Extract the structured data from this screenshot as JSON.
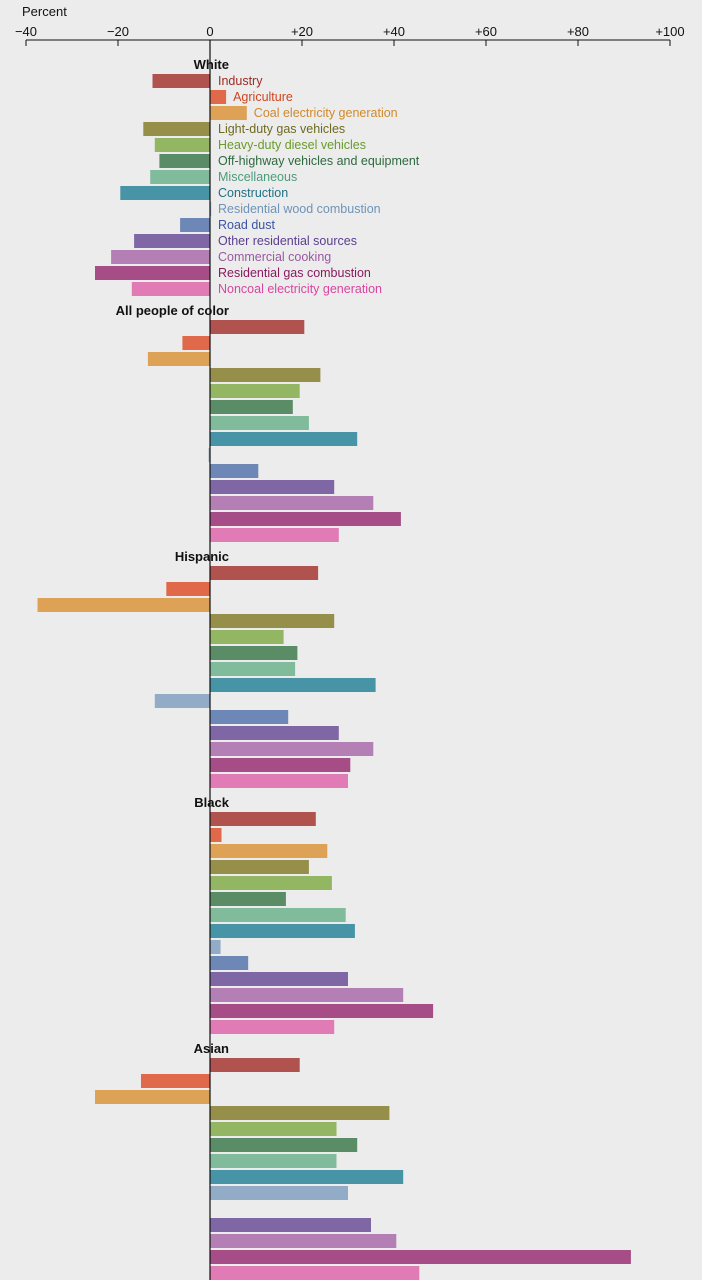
{
  "chart_data": {
    "type": "bar",
    "orientation": "horizontal",
    "xlabel": "Percent",
    "xlim": [
      -40,
      100
    ],
    "xticks": [
      "−40",
      "−20",
      "0",
      "+20",
      "+40",
      "+60",
      "+80",
      "+100"
    ],
    "xtick_values": [
      -40,
      -20,
      0,
      20,
      40,
      60,
      80,
      100
    ],
    "zero_line": true,
    "categories": [
      "Industry",
      "Agriculture",
      "Coal electricity generation",
      "Light-duty gas vehicles",
      "Heavy-duty diesel vehicles",
      "Off-highway vehicles and equipment",
      "Miscellaneous",
      "Construction",
      "Residential wood combustion",
      "Road dust",
      "Other residential sources",
      "Commercial cooking",
      "Residential gas combustion",
      "Noncoal electricity generation"
    ],
    "category_colors": [
      "#b0524d",
      "#e0694a",
      "#dea257",
      "#958f4a",
      "#93b662",
      "#5a8c66",
      "#80bb9b",
      "#4794a6",
      "#92abc7",
      "#6d87b7",
      "#7e67a4",
      "#b47fb5",
      "#a64c86",
      "#e07bb6"
    ],
    "label_colors": [
      "#9c2b23",
      "#d0451f",
      "#cf8a2c",
      "#6d6a20",
      "#6a9b2c",
      "#2e6a3f",
      "#4a9c7b",
      "#1f7185",
      "#6f93b8",
      "#3b55a1",
      "#5a3f8f",
      "#9a58a0",
      "#8a1a5f",
      "#d9459f"
    ],
    "groups": [
      {
        "name": "White",
        "values": [
          -12.5,
          3.5,
          8,
          -14.5,
          -12,
          -11,
          -13,
          -19.5,
          0,
          -6.5,
          -16.5,
          -21.5,
          -25,
          -17
        ]
      },
      {
        "name": "All people of color",
        "values": [
          20.5,
          -6,
          -13.5,
          24,
          19.5,
          18,
          21.5,
          32,
          -0.3,
          10.5,
          27,
          35.5,
          41.5,
          28
        ]
      },
      {
        "name": "Hispanic",
        "values": [
          23.5,
          -9.5,
          -37.5,
          27,
          16,
          19,
          18.5,
          36,
          -12,
          17,
          28,
          35.5,
          30.5,
          30
        ]
      },
      {
        "name": "Black",
        "values": [
          23,
          2.5,
          25.5,
          21.5,
          26.5,
          16.5,
          29.5,
          31.5,
          2.3,
          8.3,
          30,
          42,
          48.5,
          27
        ]
      },
      {
        "name": "Asian",
        "values": [
          19.5,
          -15,
          -25,
          39,
          27.5,
          32,
          27.5,
          42,
          30,
          null,
          35,
          40.5,
          91.5,
          45.5
        ]
      }
    ]
  }
}
